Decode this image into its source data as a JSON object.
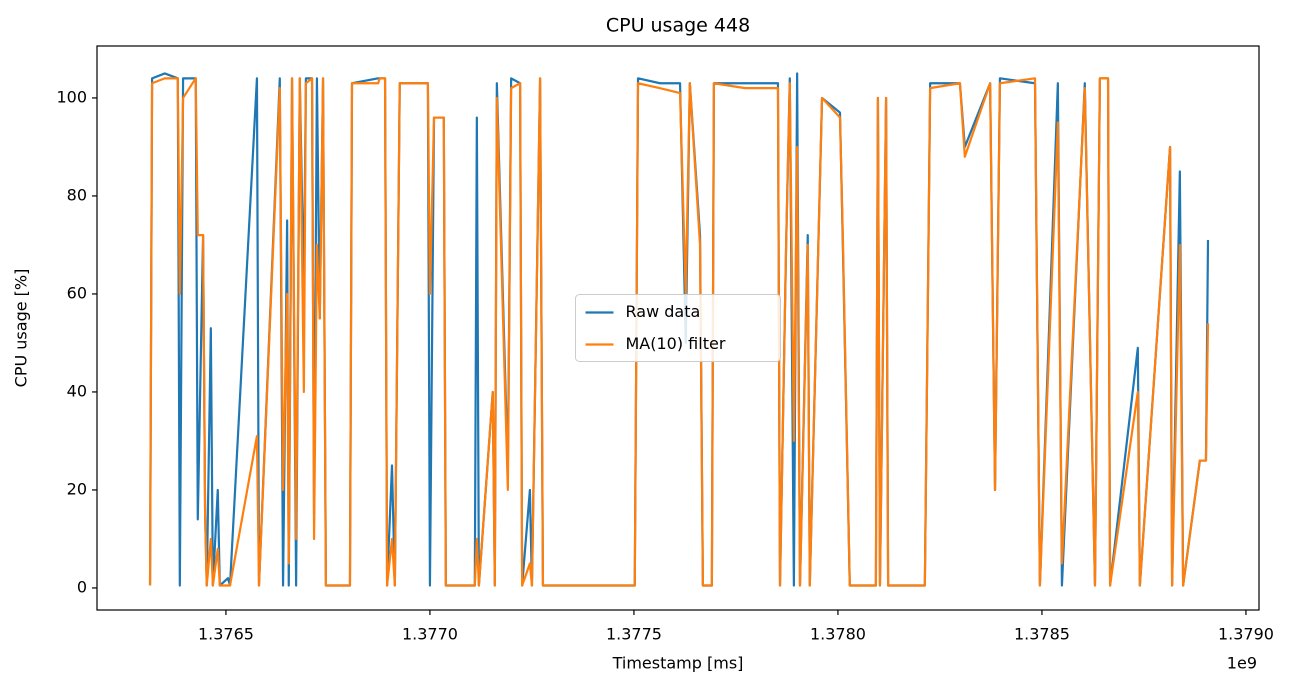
{
  "chart_data": {
    "type": "line",
    "title": "CPU usage 448",
    "xlabel": "Timestamp [ms]",
    "ylabel": "CPU usage [%]",
    "x_offset_label": "1e9",
    "x": [
      1376314000,
      1376319000,
      1376350000,
      1376382000,
      1376387000,
      1376395000,
      1376426000,
      1376431000,
      1376444000,
      1376449000,
      1376453000,
      1376463000,
      1376468000,
      1376480000,
      1376485000,
      1376505000,
      1376510000,
      1376576000,
      1376581000,
      1376632000,
      1376640000,
      1376650000,
      1376654000,
      1376662000,
      1376672000,
      1376681000,
      1376691000,
      1376696000,
      1376711000,
      1376716000,
      1376723000,
      1376730000,
      1376738000,
      1376745000,
      1376804000,
      1376809000,
      1376873000,
      1376877000,
      1376890000,
      1376895000,
      1376907000,
      1376914000,
      1376926000,
      1376995000,
      1377000000,
      1377010000,
      1377034000,
      1377039000,
      1377110000,
      1377115000,
      1377120000,
      1377154000,
      1377159000,
      1377164000,
      1377191000,
      1377199000,
      1377221000,
      1377226000,
      1377245000,
      1377250000,
      1377270000,
      1377277000,
      1377502000,
      1377510000,
      1377564000,
      1377613000,
      1377627000,
      1377637000,
      1377662000,
      1377669000,
      1377691000,
      1377696000,
      1377772000,
      1377853000,
      1377858000,
      1377873000,
      1377882000,
      1377892000,
      1377900000,
      1377907000,
      1377926000,
      1377931000,
      1377961000,
      1378005000,
      1378012000,
      1378029000,
      1378093000,
      1378098000,
      1378103000,
      1378118000,
      1378123000,
      1378213000,
      1378226000,
      1378299000,
      1378311000,
      1378373000,
      1378385000,
      1378397000,
      1378483000,
      1378495000,
      1378539000,
      1378549000,
      1378605000,
      1378630000,
      1378642000,
      1378662000,
      1378667000,
      1378735000,
      1378740000,
      1378814000,
      1378819000,
      1378838000,
      1378846000,
      1378887000,
      1378902000,
      1378907000
    ],
    "series": [
      {
        "name": "Raw data",
        "color": "#1f77b4",
        "values": [
          0.5,
          104,
          105,
          104,
          0.5,
          104,
          104,
          14,
          72,
          15,
          0.5,
          53,
          0.5,
          20,
          0.5,
          2,
          0.5,
          104,
          0.5,
          104,
          0.5,
          75,
          0.5,
          104,
          0.5,
          104,
          60,
          104,
          104,
          15,
          104,
          55,
          104,
          0.5,
          0.5,
          103,
          104,
          104,
          104,
          0.5,
          25,
          0.5,
          103,
          103,
          0.5,
          96,
          96,
          0.5,
          0.5,
          96,
          0.5,
          40,
          0.5,
          103,
          24,
          104,
          103,
          0.5,
          20,
          0.5,
          104,
          0.5,
          0.5,
          104,
          103,
          103,
          50,
          103,
          72,
          0.5,
          0.5,
          103,
          103,
          103,
          0.5,
          70,
          104,
          0.5,
          105,
          0.5,
          72,
          0.5,
          100,
          97,
          70,
          0.5,
          0.5,
          100,
          0.5,
          100,
          0.5,
          0.5,
          103,
          103,
          90,
          103,
          20,
          104,
          103,
          0.5,
          103,
          0.5,
          103,
          0.5,
          104,
          104,
          0.5,
          49,
          0.5,
          90,
          0.5,
          85,
          0.5,
          26,
          26,
          71
        ]
      },
      {
        "name": "MA(10) filter",
        "color": "#ff7f0e",
        "values": [
          0.5,
          103,
          104,
          104,
          60,
          100,
          104,
          72,
          72,
          15,
          0.5,
          10,
          0.5,
          8,
          0.5,
          0.5,
          0.5,
          31,
          0.5,
          102,
          20,
          60,
          5,
          104,
          10,
          104,
          40,
          103,
          104,
          10,
          70,
          55,
          104,
          0.5,
          0.5,
          103,
          103,
          104,
          104,
          0.5,
          10,
          0.5,
          103,
          103,
          60,
          96,
          96,
          0.5,
          0.5,
          10,
          0.5,
          40,
          0.5,
          100,
          20,
          102,
          103,
          0.5,
          5,
          0.5,
          104,
          0.5,
          0.5,
          103,
          102,
          101,
          60,
          103,
          70,
          0.5,
          0.5,
          103,
          102,
          102,
          0.5,
          70,
          103,
          30,
          90,
          0.5,
          70,
          0.5,
          100,
          96,
          72,
          0.5,
          0.5,
          100,
          0.5,
          100,
          0.5,
          0.5,
          102,
          103,
          88,
          103,
          20,
          103,
          104,
          0.5,
          95,
          5,
          102,
          0.5,
          104,
          104,
          0.5,
          40,
          0.5,
          90,
          0.5,
          70,
          0.5,
          26,
          26,
          54
        ]
      }
    ],
    "xlim": [
      1376184000,
      1379032000
    ],
    "ylim": [
      -4.5,
      110.6
    ],
    "xticks": [
      {
        "value": 1376500000,
        "label": "1.3765"
      },
      {
        "value": 1377000000,
        "label": "1.3770"
      },
      {
        "value": 1377500000,
        "label": "1.3775"
      },
      {
        "value": 1378000000,
        "label": "1.3780"
      },
      {
        "value": 1378500000,
        "label": "1.3785"
      },
      {
        "value": 1379000000,
        "label": "1.3790"
      }
    ],
    "yticks": [
      0,
      20,
      40,
      60,
      80,
      100
    ],
    "legend": "center",
    "grid": false
  }
}
